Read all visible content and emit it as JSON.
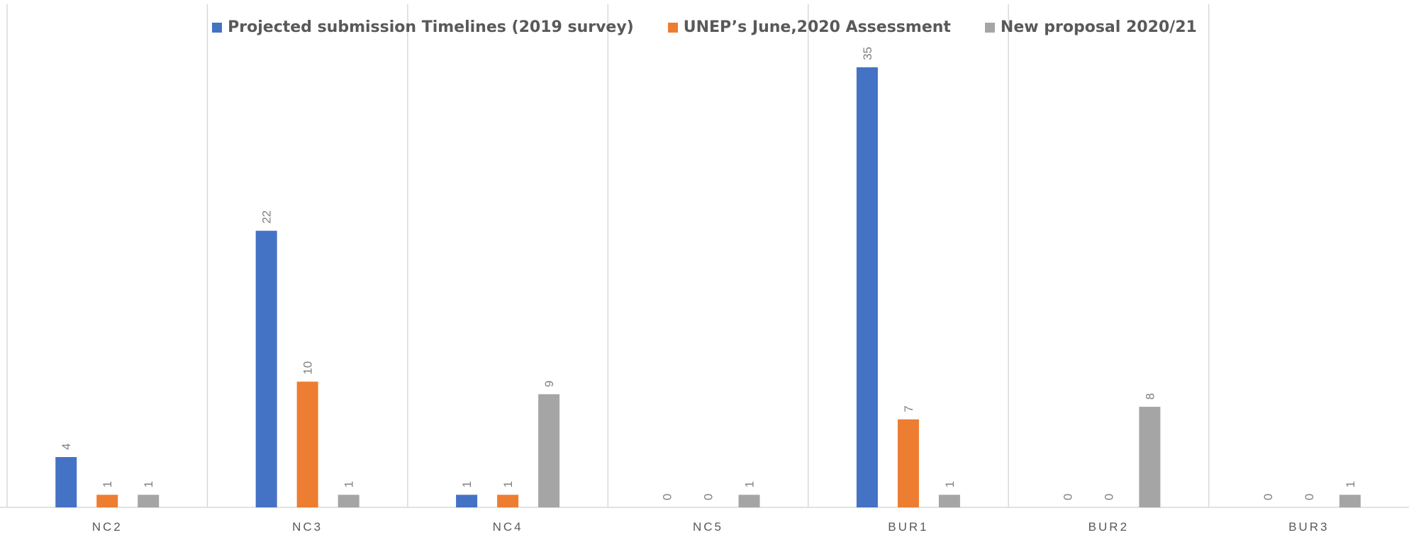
{
  "chart_data": {
    "type": "bar",
    "title": "",
    "xlabel": "",
    "ylabel": "",
    "categories": [
      "NC2",
      "NC3",
      "NC4",
      "NC5",
      "BUR1",
      "BUR2",
      "BUR3"
    ],
    "series": [
      {
        "name": "Projected submission Timelines (2019 survey)",
        "color": "#4472C4",
        "values": [
          4,
          22,
          1,
          0,
          35,
          0,
          0
        ]
      },
      {
        "name": "UNEP’s June,2020 Assessment",
        "color": "#ED7D31",
        "values": [
          1,
          10,
          1,
          0,
          7,
          0,
          0
        ]
      },
      {
        "name": "New proposal 2020/21",
        "color": "#A5A5A5",
        "values": [
          1,
          1,
          9,
          1,
          1,
          8,
          1
        ]
      }
    ],
    "ylim": [
      0,
      35
    ],
    "grid": false,
    "legend_position": "top",
    "data_labels": true,
    "data_label_orientation": "rotated"
  }
}
